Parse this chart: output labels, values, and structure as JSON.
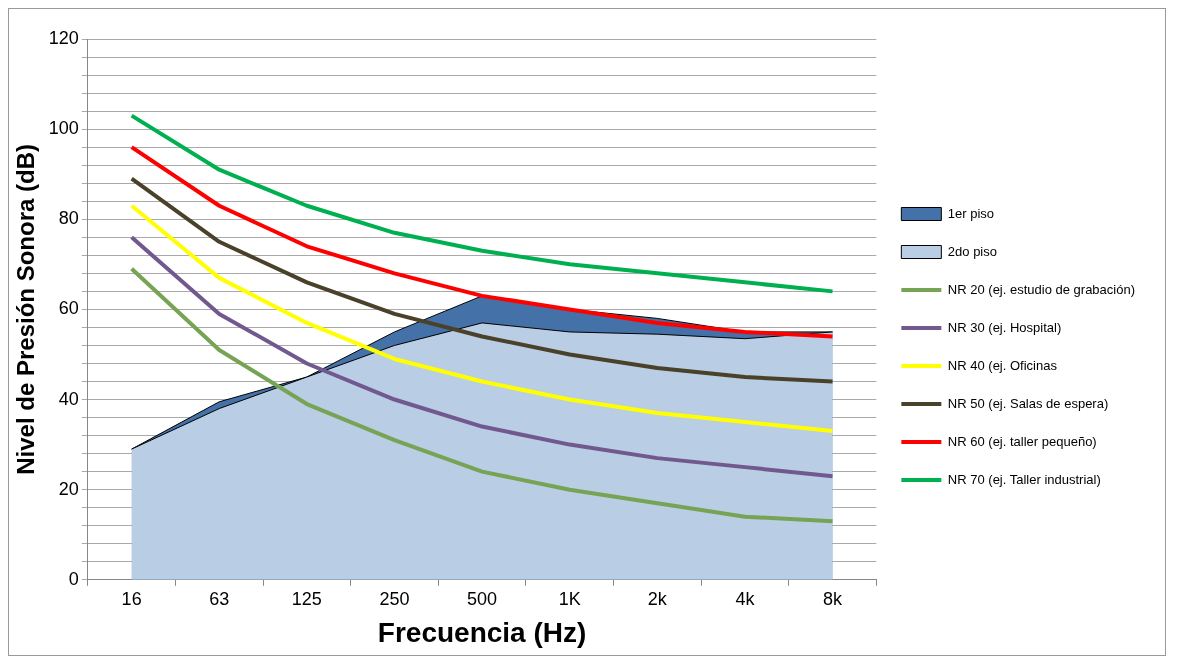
{
  "chart_data": {
    "type": "line",
    "xlabel": "Frecuencia (Hz)",
    "ylabel": "Nivel de Presión Sonora (dB)",
    "categories": [
      "16",
      "63",
      "125",
      "250",
      "500",
      "1K",
      "2k",
      "4k",
      "8k"
    ],
    "ylim": [
      0,
      120
    ],
    "yticks": [
      0,
      {
        "value": 4,
        "label": null
      },
      {
        "value": 8,
        "label": null
      },
      {
        "value": 12,
        "label": null
      },
      {
        "value": 16,
        "label": null
      },
      20,
      {
        "value": 24,
        "label": null
      },
      {
        "value": 28,
        "label": null
      },
      {
        "value": 32,
        "label": null
      },
      {
        "value": 36,
        "label": null
      },
      40,
      {
        "value": 44,
        "label": null
      },
      {
        "value": 48,
        "label": null
      },
      {
        "value": 52,
        "label": null
      },
      {
        "value": 56,
        "label": null
      },
      60,
      {
        "value": 64,
        "label": null
      },
      {
        "value": 68,
        "label": null
      },
      {
        "value": 72,
        "label": null
      },
      {
        "value": 76,
        "label": null
      },
      80,
      {
        "value": 84,
        "label": null
      },
      {
        "value": 88,
        "label": null
      },
      {
        "value": 92,
        "label": null
      },
      {
        "value": 96,
        "label": null
      },
      100,
      {
        "value": 104,
        "label": null
      },
      {
        "value": 108,
        "label": null
      },
      {
        "value": 112,
        "label": null
      },
      {
        "value": 116,
        "label": null
      },
      120
    ],
    "grid": "y",
    "legend": "right",
    "series": [
      {
        "name": "1er piso",
        "type": "area",
        "color": "#4472a8",
        "values": [
          29,
          39.5,
          45,
          55,
          63,
          60,
          58,
          55,
          55
        ]
      },
      {
        "name": "2do piso",
        "type": "area",
        "color": "#b9cde5",
        "values": [
          29,
          38,
          45,
          52,
          57,
          55,
          54.5,
          53.5,
          55
        ]
      },
      {
        "name": "NR 20 (ej. estudio de grabación)",
        "type": "line",
        "color": "#77a355",
        "values": [
          69,
          51,
          39,
          31,
          24,
          20,
          17,
          14,
          13
        ]
      },
      {
        "name": "NR 30 (ej. Hospital)",
        "type": "line",
        "color": "#71588f",
        "values": [
          76,
          59,
          48,
          40,
          34,
          30,
          27,
          25,
          23
        ]
      },
      {
        "name": "NR 40 (ej. Oficinas",
        "type": "line",
        "color": "#ffff00",
        "values": [
          83,
          67,
          57,
          49,
          44,
          40,
          37,
          35,
          33
        ]
      },
      {
        "name": "NR 50 (ej. Salas de espera)",
        "type": "line",
        "color": "#4a412a",
        "values": [
          89,
          75,
          66,
          59,
          54,
          50,
          47,
          45,
          44
        ]
      },
      {
        "name": "NR 60 (ej. taller pequeño)",
        "type": "line",
        "color": "#ff0000",
        "values": [
          96,
          83,
          74,
          68,
          63,
          60,
          57,
          55,
          54
        ]
      },
      {
        "name": "NR 70 (ej. Taller industrial)",
        "type": "line",
        "color": "#00b050",
        "values": [
          103,
          91,
          83,
          77,
          73,
          70,
          68,
          66,
          64
        ]
      }
    ]
  }
}
